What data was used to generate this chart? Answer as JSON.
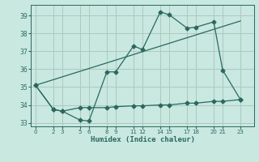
{
  "xlabel": "Humidex (Indice chaleur)",
  "bg_color": "#c8e8e0",
  "grid_color": "#b0c8c0",
  "line_color": "#2a6860",
  "xtick_positions": [
    0,
    2,
    3,
    5,
    6,
    8,
    9,
    11,
    12,
    14,
    15,
    17,
    18,
    20,
    21,
    23
  ],
  "xtick_labels": [
    "0",
    "2",
    "3",
    "5",
    "6",
    "8",
    "9",
    "11",
    "12",
    "14",
    "15",
    "17",
    "18",
    "20",
    "21",
    "23"
  ],
  "ylim": [
    32.8,
    39.6
  ],
  "xlim": [
    -0.5,
    24.5
  ],
  "yticks": [
    33,
    34,
    35,
    36,
    37,
    38,
    39
  ],
  "line1_x": [
    0,
    2,
    3,
    5,
    6,
    8,
    9,
    11,
    12,
    14,
    15,
    17,
    18,
    20,
    21,
    23
  ],
  "line1_y": [
    35.1,
    33.75,
    33.65,
    33.15,
    33.1,
    35.85,
    35.85,
    37.3,
    37.1,
    39.2,
    39.05,
    38.3,
    38.35,
    38.65,
    35.95,
    34.3
  ],
  "line2_x": [
    0,
    2,
    3,
    5,
    6,
    8,
    9,
    11,
    12,
    14,
    15,
    17,
    18,
    20,
    21,
    23
  ],
  "line2_y": [
    35.1,
    33.75,
    33.65,
    33.85,
    33.85,
    33.85,
    33.9,
    33.95,
    33.95,
    34.0,
    34.0,
    34.1,
    34.1,
    34.2,
    34.2,
    34.3
  ],
  "line3_x": [
    0,
    23
  ],
  "line3_y": [
    35.1,
    38.7
  ],
  "marker_style": "D"
}
